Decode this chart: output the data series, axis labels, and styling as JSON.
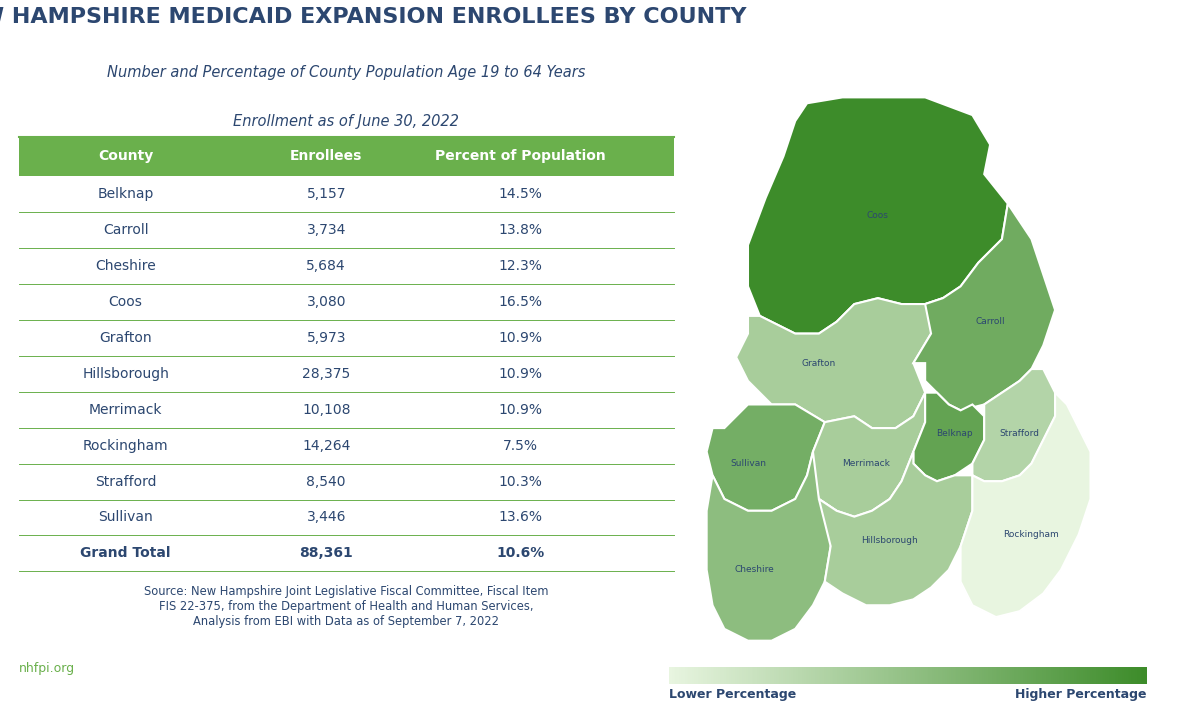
{
  "title": "NEW HAMPSHIRE MEDICAID EXPANSION ENROLLEES BY COUNTY",
  "subtitle1": "Number and Percentage of County Population Age 19 to 64 Years",
  "subtitle2": "Enrollment as of June 30, 2022",
  "header": [
    "County",
    "Enrollees",
    "Percent of Population"
  ],
  "rows": [
    [
      "Belknap",
      "5,157",
      "14.5%"
    ],
    [
      "Carroll",
      "3,734",
      "13.8%"
    ],
    [
      "Cheshire",
      "5,684",
      "12.3%"
    ],
    [
      "Coos",
      "3,080",
      "16.5%"
    ],
    [
      "Grafton",
      "5,973",
      "10.9%"
    ],
    [
      "Hillsborough",
      "28,375",
      "10.9%"
    ],
    [
      "Merrimack",
      "10,108",
      "10.9%"
    ],
    [
      "Rockingham",
      "14,264",
      "7.5%"
    ],
    [
      "Strafford",
      "8,540",
      "10.3%"
    ],
    [
      "Sullivan",
      "3,446",
      "13.6%"
    ],
    [
      "Grand Total",
      "88,361",
      "10.6%"
    ]
  ],
  "source_text": "Source: New Hampshire Joint Legislative Fiscal Committee, Fiscal Item\nFIS 22-375, from the Department of Health and Human Services,\nAnalysis from EBI with Data as of September 7, 2022",
  "footer_text": "nhfpi.org",
  "legend_lower": "Lower Percentage",
  "legend_higher": "Higher Percentage",
  "header_bg": "#6ab04c",
  "header_fg": "#ffffff",
  "row_fg": "#2c4770",
  "line_color": "#6ab04c",
  "title_color": "#2c4770",
  "source_color": "#2c4770",
  "footer_color": "#6ab04c",
  "county_percentages": {
    "Belknap": 14.5,
    "Carroll": 13.8,
    "Cheshire": 12.3,
    "Coos": 16.5,
    "Grafton": 10.9,
    "Hillsborough": 10.9,
    "Merrimack": 10.9,
    "Rockingham": 7.5,
    "Strafford": 10.3,
    "Sullivan": 13.6
  },
  "map_color_low": "#e8f5e0",
  "map_color_high": "#3d8c2a",
  "map_border_color": "#ffffff"
}
